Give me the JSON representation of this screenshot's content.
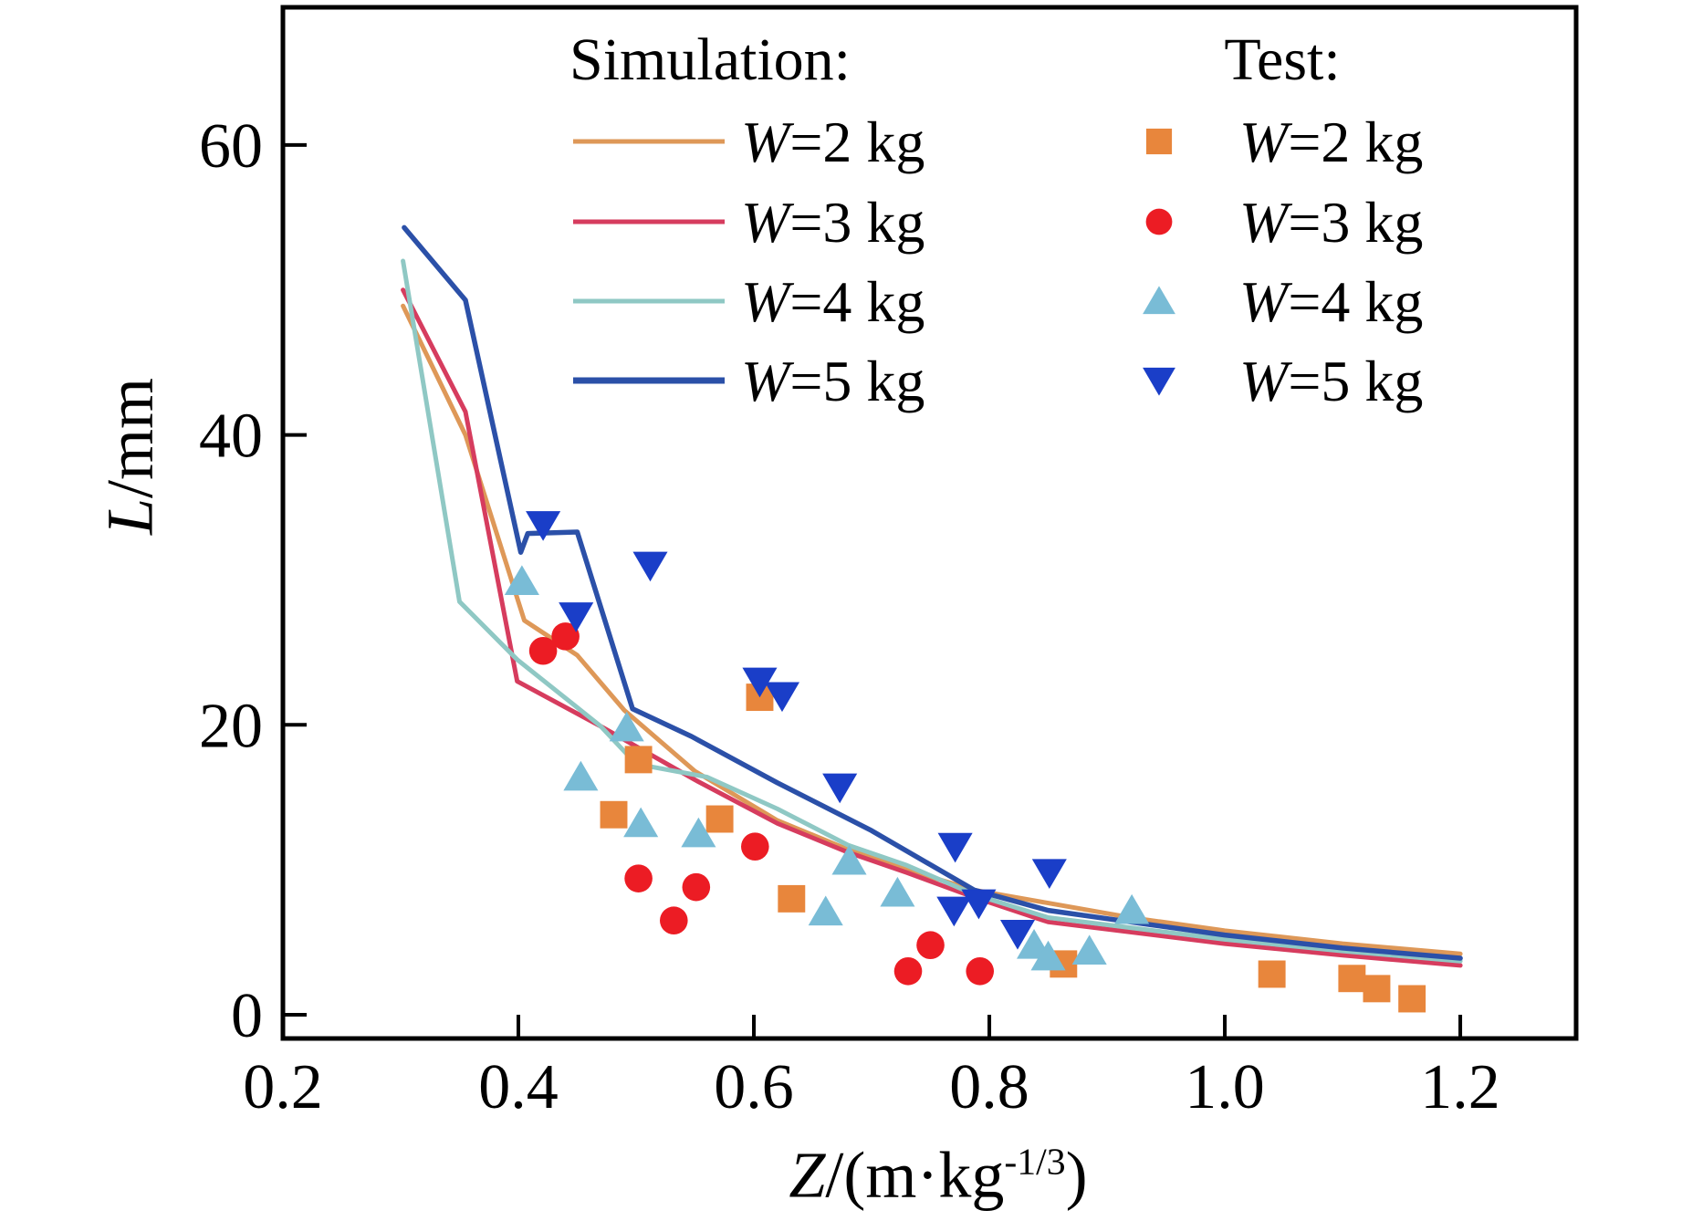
{
  "chart_data": {
    "type": "line+scatter",
    "title": "",
    "xlabel": {
      "var": "Z",
      "rest": "/(m·kg",
      "sup": "-1/3",
      "close": ")"
    },
    "ylabel": {
      "var": "L",
      "rest": "/mm"
    },
    "x_ticks": [
      "0.2",
      "0.4",
      "0.6",
      "0.8",
      "1.0",
      "1.2"
    ],
    "x_tick_values": [
      0.2,
      0.4,
      0.6,
      0.8,
      1.0,
      1.2
    ],
    "y_ticks": [
      "0",
      "20",
      "40",
      "60"
    ],
    "y_tick_values": [
      0,
      20,
      40,
      60
    ],
    "x_range": [
      0.2,
      1.2984
    ],
    "y_range": [
      -1.64,
      69.5
    ],
    "grid": "off",
    "legend": {
      "sim_header": "Simulation:",
      "test_header": "Test:",
      "position": "top"
    },
    "sim_series": [
      {
        "id": "w2",
        "label_var": "W",
        "label_rest": "=2 kg",
        "color": "#DE9858",
        "points": [
          [
            0.302,
            48.9
          ],
          [
            0.355,
            40.0
          ],
          [
            0.405,
            27.2
          ],
          [
            0.45,
            24.8
          ],
          [
            0.49,
            21.0
          ],
          [
            0.55,
            16.8
          ],
          [
            0.62,
            13.4
          ],
          [
            0.68,
            11.4
          ],
          [
            0.73,
            10.0
          ],
          [
            0.787,
            8.6
          ],
          [
            0.85,
            7.7
          ],
          [
            0.92,
            6.7
          ],
          [
            1.0,
            5.8
          ],
          [
            1.1,
            4.9
          ],
          [
            1.2,
            4.2
          ]
        ]
      },
      {
        "id": "w3",
        "label_var": "W",
        "label_rest": "=3 kg",
        "color": "#D63C5E",
        "points": [
          [
            0.302,
            50.0
          ],
          [
            0.355,
            41.6
          ],
          [
            0.399,
            23.0
          ],
          [
            0.47,
            19.9
          ],
          [
            0.55,
            16.2
          ],
          [
            0.62,
            13.2
          ],
          [
            0.68,
            11.2
          ],
          [
            0.73,
            9.8
          ],
          [
            0.787,
            8.1
          ],
          [
            0.85,
            6.4
          ],
          [
            0.92,
            5.7
          ],
          [
            1.0,
            4.9
          ],
          [
            1.1,
            4.1
          ],
          [
            1.2,
            3.4
          ]
        ]
      },
      {
        "id": "w4",
        "label_var": "W",
        "label_rest": "=4 kg",
        "color": "#8FC8C4",
        "points": [
          [
            0.302,
            52.0
          ],
          [
            0.35,
            28.5
          ],
          [
            0.399,
            24.5
          ],
          [
            0.47,
            19.9
          ],
          [
            0.5,
            17.3
          ],
          [
            0.56,
            16.4
          ],
          [
            0.62,
            14.2
          ],
          [
            0.68,
            11.7
          ],
          [
            0.73,
            10.3
          ],
          [
            0.787,
            8.3
          ],
          [
            0.85,
            6.7
          ],
          [
            0.92,
            6.0
          ],
          [
            1.0,
            5.2
          ],
          [
            1.1,
            4.4
          ],
          [
            1.2,
            3.7
          ]
        ]
      },
      {
        "id": "w5",
        "label_var": "W",
        "label_rest": "=5 kg",
        "color": "#2B50A8",
        "points": [
          [
            0.303,
            54.3
          ],
          [
            0.355,
            49.3
          ],
          [
            0.402,
            31.9
          ],
          [
            0.408,
            33.2
          ],
          [
            0.45,
            33.3
          ],
          [
            0.497,
            21.1
          ],
          [
            0.547,
            19.2
          ],
          [
            0.62,
            16.0
          ],
          [
            0.7,
            12.7
          ],
          [
            0.787,
            8.6
          ],
          [
            0.85,
            7.2
          ],
          [
            0.92,
            6.4
          ],
          [
            1.0,
            5.5
          ],
          [
            1.1,
            4.6
          ],
          [
            1.2,
            3.9
          ]
        ]
      }
    ],
    "test_series": [
      {
        "id": "w2",
        "label_var": "W",
        "label_rest": "=2 kg",
        "marker": "square",
        "color": "#E8863C",
        "points": [
          [
            0.605,
            21.9
          ],
          [
            0.502,
            17.6
          ],
          [
            0.481,
            13.8
          ],
          [
            0.571,
            13.5
          ],
          [
            0.632,
            8.0
          ],
          [
            0.863,
            3.5
          ],
          [
            1.04,
            2.8
          ],
          [
            1.108,
            2.5
          ],
          [
            1.129,
            1.8
          ],
          [
            1.159,
            1.1
          ]
        ]
      },
      {
        "id": "w3",
        "label_var": "W",
        "label_rest": "=3 kg",
        "marker": "circle",
        "color": "#EC1C24",
        "points": [
          [
            0.421,
            25.1
          ],
          [
            0.44,
            26.1
          ],
          [
            0.601,
            11.6
          ],
          [
            0.502,
            9.4
          ],
          [
            0.551,
            8.8
          ],
          [
            0.532,
            6.5
          ],
          [
            0.75,
            4.8
          ],
          [
            0.731,
            3.0
          ],
          [
            0.792,
            3.0
          ]
        ]
      },
      {
        "id": "w4",
        "label_var": "W",
        "label_rest": "=4 kg",
        "marker": "triangle-up",
        "color": "#79BCD6",
        "points": [
          [
            0.403,
            29.9
          ],
          [
            0.492,
            19.8
          ],
          [
            0.453,
            16.4
          ],
          [
            0.504,
            13.2
          ],
          [
            0.553,
            12.5
          ],
          [
            0.681,
            10.6
          ],
          [
            0.722,
            8.4
          ],
          [
            0.661,
            7.1
          ],
          [
            0.921,
            7.2
          ],
          [
            0.838,
            4.8
          ],
          [
            0.85,
            4.0
          ],
          [
            0.885,
            4.4
          ]
        ]
      },
      {
        "id": "w5",
        "label_var": "W",
        "label_rest": "=5 kg",
        "marker": "triangle-down",
        "color": "#1A3EC8",
        "points": [
          [
            0.421,
            33.8
          ],
          [
            0.512,
            31.0
          ],
          [
            0.449,
            27.5
          ],
          [
            0.605,
            23.0
          ],
          [
            0.624,
            22.0
          ],
          [
            0.673,
            15.7
          ],
          [
            0.771,
            11.6
          ],
          [
            0.851,
            9.8
          ],
          [
            0.791,
            7.7
          ],
          [
            0.77,
            7.2
          ],
          [
            0.824,
            5.6
          ]
        ]
      }
    ]
  }
}
